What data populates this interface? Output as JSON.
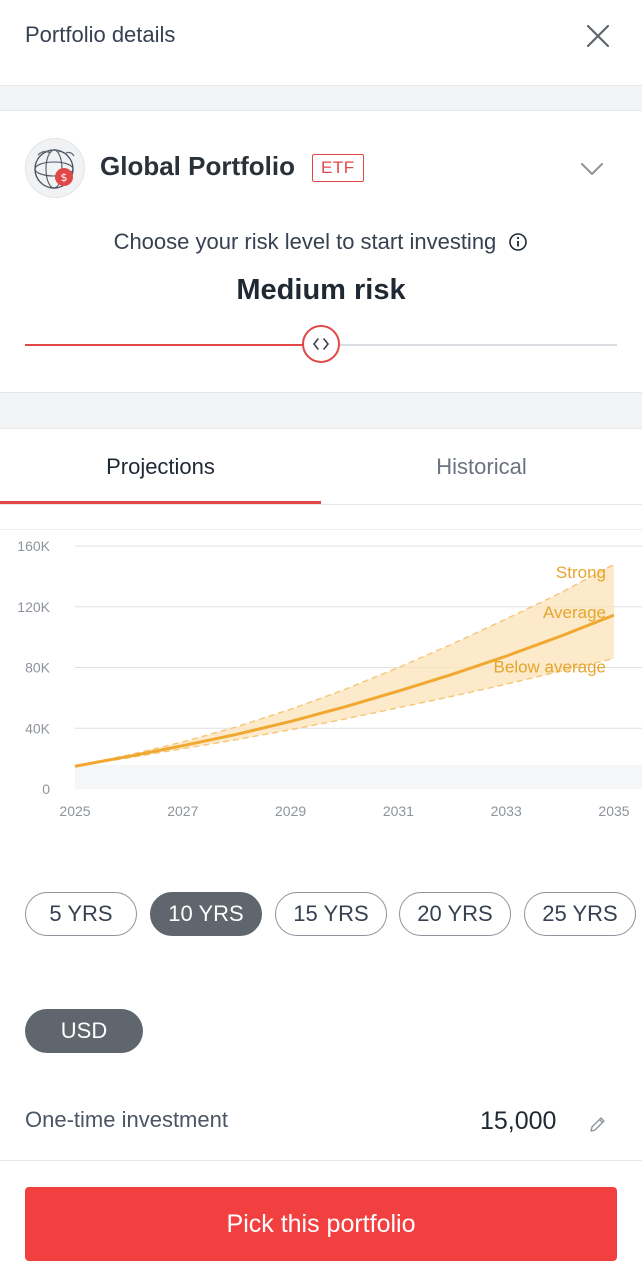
{
  "header": {
    "title": "Portfolio details",
    "close_icon": "close-icon"
  },
  "portfolio": {
    "name": "Global Portfolio",
    "badge": "ETF",
    "logo_icon": "globe-dollar-icon",
    "expand_icon": "chevron-down-icon"
  },
  "risk": {
    "prompt": "Choose your risk level to start investing",
    "info_icon": "info-icon",
    "level_label": "Medium risk",
    "slider_value_fraction": 0.5
  },
  "tabs": [
    {
      "label": "Projections",
      "active": true
    },
    {
      "label": "Historical",
      "active": false
    }
  ],
  "chart_data": {
    "type": "area",
    "title": "",
    "xlabel": "",
    "ylabel": "",
    "x": [
      2025,
      2026,
      2027,
      2028,
      2029,
      2030,
      2031,
      2032,
      2033,
      2034,
      2035
    ],
    "x_ticks": [
      "2025",
      "2027",
      "2029",
      "2031",
      "2033",
      "2035"
    ],
    "y_ticks": [
      "0",
      "40K",
      "80K",
      "120K",
      "160K"
    ],
    "ylim": [
      0,
      160000
    ],
    "xlim": [
      2025,
      2035
    ],
    "series": [
      {
        "name": "Strong",
        "values": [
          15000,
          22500,
          31000,
          41000,
          52500,
          65500,
          80000,
          95500,
          112000,
          129000,
          148000
        ]
      },
      {
        "name": "Average",
        "values": [
          15000,
          21500,
          28500,
          36000,
          44500,
          54000,
          64500,
          75500,
          87500,
          100500,
          114500
        ]
      },
      {
        "name": "Below average",
        "values": [
          15000,
          20500,
          26500,
          32500,
          39000,
          46000,
          53500,
          61000,
          69000,
          77500,
          86000
        ]
      }
    ],
    "grid": true,
    "colors": {
      "line": "#f0a830",
      "band": "#fbe3b8",
      "label": "#e6a52b"
    }
  },
  "durations": {
    "options": [
      "5 YRS",
      "10 YRS",
      "15 YRS",
      "20 YRS",
      "25 YRS"
    ],
    "selected": "10 YRS"
  },
  "currency": {
    "label": "USD"
  },
  "investment": {
    "label": "One-time investment",
    "value": "15,000",
    "edit_icon": "pencil-icon"
  },
  "cta": {
    "label": "Pick this portfolio"
  },
  "colors": {
    "accent": "#e04848",
    "cta": "#f23f3f",
    "pill_selected": "#5f666d"
  }
}
